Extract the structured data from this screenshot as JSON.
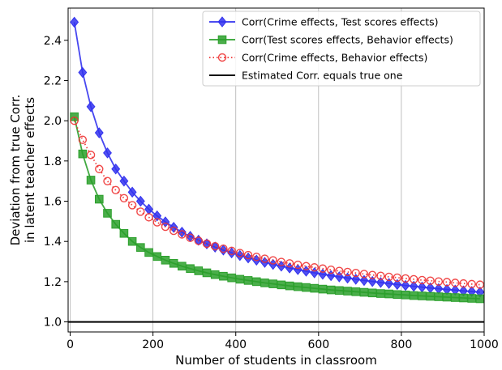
{
  "chart_data": {
    "type": "line",
    "title": "",
    "xlabel": "Number of students in classroom",
    "ylabel_lines": [
      "Deviation from true Corr.",
      "in latent teacher effects"
    ],
    "xlim": [
      -5,
      1000
    ],
    "ylim": [
      0.95,
      2.56
    ],
    "xticks": [
      0,
      200,
      400,
      600,
      800,
      1000
    ],
    "yticks": [
      1.0,
      1.2,
      1.4,
      1.6,
      1.8,
      2.0,
      2.2,
      2.4
    ],
    "ytick_labels": [
      "1.0",
      "1.2",
      "1.4",
      "1.6",
      "1.8",
      "2.0",
      "2.2",
      "2.4"
    ],
    "x_grid": true,
    "y_grid": false,
    "legend_position": "top-right",
    "x": [
      10,
      30,
      50,
      70,
      90,
      110,
      130,
      150,
      170,
      190,
      210,
      230,
      250,
      270,
      290,
      310,
      330,
      350,
      370,
      390,
      410,
      430,
      450,
      470,
      490,
      510,
      530,
      550,
      570,
      590,
      610,
      630,
      650,
      670,
      690,
      710,
      730,
      750,
      770,
      790,
      810,
      830,
      850,
      870,
      890,
      910,
      930,
      950,
      970,
      990
    ],
    "series": [
      {
        "name": "Corr(Crime effects, Test scores effects)",
        "color": "#3333ee",
        "marker": "diamond",
        "linestyle": "solid",
        "values": [
          2.49,
          2.24,
          2.07,
          1.94,
          1.84,
          1.76,
          1.7,
          1.645,
          1.6,
          1.56,
          1.527,
          1.497,
          1.47,
          1.446,
          1.425,
          1.406,
          1.388,
          1.372,
          1.357,
          1.343,
          1.33,
          1.318,
          1.307,
          1.296,
          1.286,
          1.277,
          1.268,
          1.26,
          1.252,
          1.244,
          1.237,
          1.23,
          1.224,
          1.218,
          1.212,
          1.206,
          1.201,
          1.196,
          1.191,
          1.186,
          1.181,
          1.177,
          1.173,
          1.169,
          1.165,
          1.161,
          1.158,
          1.154,
          1.151,
          1.148
        ]
      },
      {
        "name": "Corr(Test scores effects, Behavior effects)",
        "color": "#2ca02c",
        "marker": "square",
        "linestyle": "solid",
        "values": [
          2.02,
          1.835,
          1.705,
          1.61,
          1.54,
          1.485,
          1.44,
          1.4,
          1.37,
          1.345,
          1.325,
          1.307,
          1.291,
          1.277,
          1.265,
          1.254,
          1.244,
          1.235,
          1.227,
          1.219,
          1.212,
          1.206,
          1.2,
          1.194,
          1.189,
          1.184,
          1.179,
          1.175,
          1.171,
          1.167,
          1.163,
          1.159,
          1.156,
          1.153,
          1.15,
          1.147,
          1.144,
          1.141,
          1.139,
          1.136,
          1.134,
          1.131,
          1.129,
          1.127,
          1.125,
          1.123,
          1.121,
          1.119,
          1.117,
          1.115
        ]
      },
      {
        "name": "Corr(Crime effects, Behavior effects)",
        "color": "#ee3333",
        "marker": "open-circle",
        "linestyle": "dotted",
        "values": [
          2.0,
          1.905,
          1.83,
          1.76,
          1.7,
          1.655,
          1.615,
          1.58,
          1.548,
          1.52,
          1.495,
          1.473,
          1.453,
          1.435,
          1.418,
          1.403,
          1.389,
          1.376,
          1.364,
          1.353,
          1.342,
          1.332,
          1.323,
          1.314,
          1.306,
          1.298,
          1.291,
          1.284,
          1.277,
          1.271,
          1.265,
          1.259,
          1.253,
          1.248,
          1.243,
          1.238,
          1.233,
          1.229,
          1.224,
          1.22,
          1.216,
          1.212,
          1.208,
          1.205,
          1.201,
          1.198,
          1.194,
          1.191,
          1.188,
          1.185
        ]
      }
    ],
    "reference_line": {
      "name": "Estimated Corr. equals true one",
      "y": 1.0,
      "color": "#000000"
    }
  }
}
